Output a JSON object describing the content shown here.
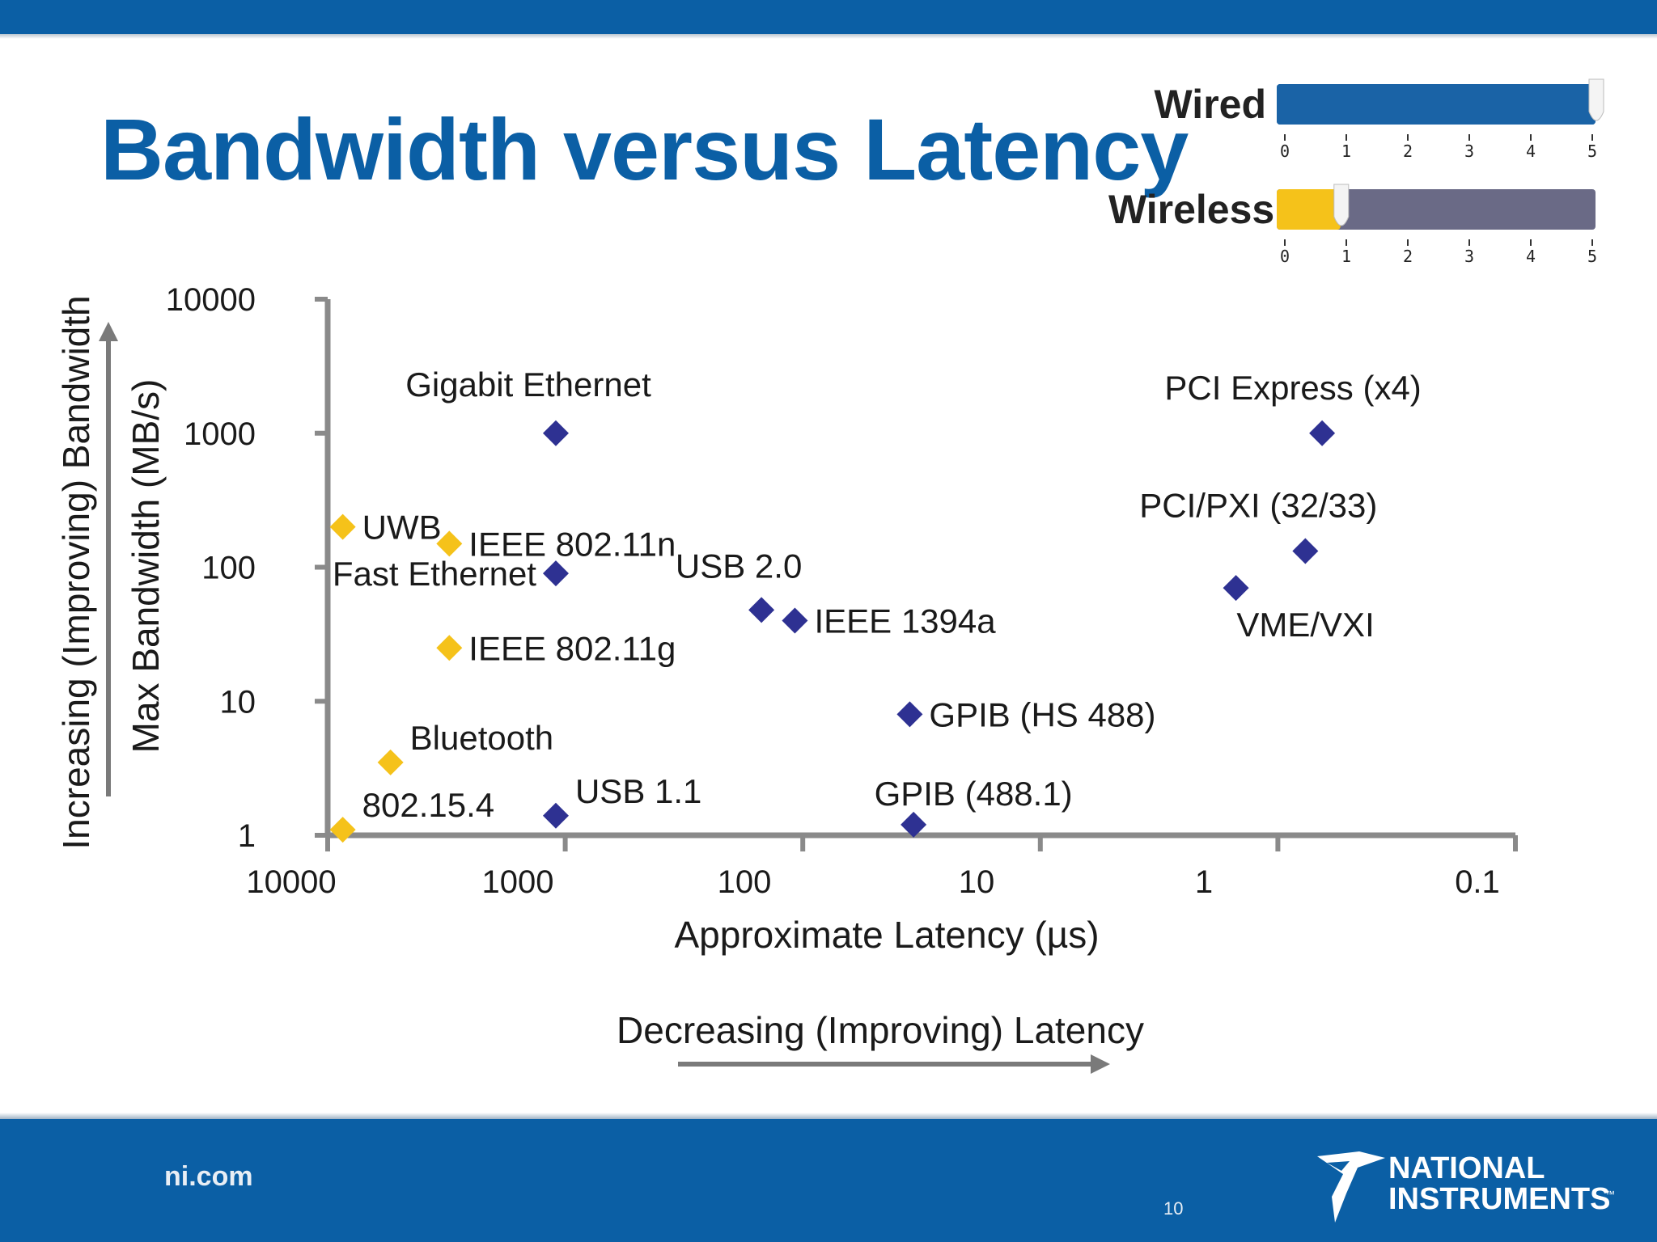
{
  "slide": {
    "title": "Bandwidth versus Latency",
    "footer_site": "ni.com",
    "page_number": "10",
    "logo_line1": "NATIONAL",
    "logo_line2": "INSTRUMENTS",
    "logo_trademark": "™"
  },
  "meters": {
    "ticks": [
      "0",
      "1",
      "2",
      "3",
      "4",
      "5"
    ],
    "max": 5,
    "items": [
      {
        "label": "Wired",
        "level": 5,
        "fill_color": "#1a63a6",
        "track_color": "#1a63a6"
      },
      {
        "label": "Wireless",
        "level": 1,
        "fill_color": "#f5c21a",
        "track_color": "#6a6a86"
      }
    ]
  },
  "chart_data": {
    "type": "scatter",
    "xlabel": "Approximate Latency (µs)",
    "ylabel": "Max Bandwidth (MB/s)",
    "x_scale": "log",
    "x_reversed": true,
    "y_scale": "log",
    "xlim": [
      10000,
      0.1
    ],
    "ylim": [
      1,
      10000
    ],
    "x_ticks": [
      "10000",
      "1000",
      "100",
      "10",
      "1",
      "0.1"
    ],
    "x_tick_values": [
      10000,
      1000,
      100,
      10,
      1,
      0.1
    ],
    "y_ticks": [
      "1",
      "10",
      "100",
      "1000",
      "10000"
    ],
    "y_tick_values": [
      1,
      10,
      100,
      1000,
      10000
    ],
    "grid": false,
    "annotations": {
      "y_arrow": "Increasing (Improving) Bandwidth",
      "x_arrow": "Decreasing (Improving) Latency"
    },
    "colors": {
      "wired": "#2e3192",
      "wireless": "#f5c21a"
    },
    "points": [
      {
        "label": "UWB",
        "x": 9000,
        "y": 200,
        "type": "wireless",
        "label_pos": "right"
      },
      {
        "label": "IEEE 802.11n",
        "x": 3000,
        "y": 150,
        "type": "wireless",
        "label_pos": "right"
      },
      {
        "label": "IEEE 802.11g",
        "x": 3000,
        "y": 25,
        "type": "wireless",
        "label_pos": "right"
      },
      {
        "label": "Bluetooth",
        "x": 5500,
        "y": 3.5,
        "type": "wireless",
        "label_pos": "above-right"
      },
      {
        "label": "802.15.4",
        "x": 9000,
        "y": 1.1,
        "type": "wireless",
        "label_pos": "above-right"
      },
      {
        "label": "Gigabit Ethernet",
        "x": 1000,
        "y": 1000,
        "type": "wired",
        "label_pos": "above"
      },
      {
        "label": "Fast Ethernet",
        "x": 1000,
        "y": 90,
        "type": "wired",
        "label_pos": "left"
      },
      {
        "label": "USB 2.0",
        "x": 120,
        "y": 48,
        "type": "wired",
        "label_pos": "above"
      },
      {
        "label": "IEEE 1394a",
        "x": 85,
        "y": 40,
        "type": "wired",
        "label_pos": "right"
      },
      {
        "label": "USB 1.1",
        "x": 1000,
        "y": 1.4,
        "type": "wired",
        "label_pos": "above-right"
      },
      {
        "label": "GPIB (HS 488)",
        "x": 26,
        "y": 8,
        "type": "wired",
        "label_pos": "right"
      },
      {
        "label": "GPIB (488.1)",
        "x": 25,
        "y": 1.2,
        "type": "wired",
        "label_pos": "above"
      },
      {
        "label": "PCI Express (x4)",
        "x": 0.37,
        "y": 1000,
        "type": "wired",
        "label_pos": "above"
      },
      {
        "label": "PCI/PXI (32/33)",
        "x": 0.44,
        "y": 132,
        "type": "wired",
        "label_pos": "above"
      },
      {
        "label": "VME/VXI",
        "x": 0.9,
        "y": 70,
        "type": "wired",
        "label_pos": "below"
      }
    ]
  }
}
